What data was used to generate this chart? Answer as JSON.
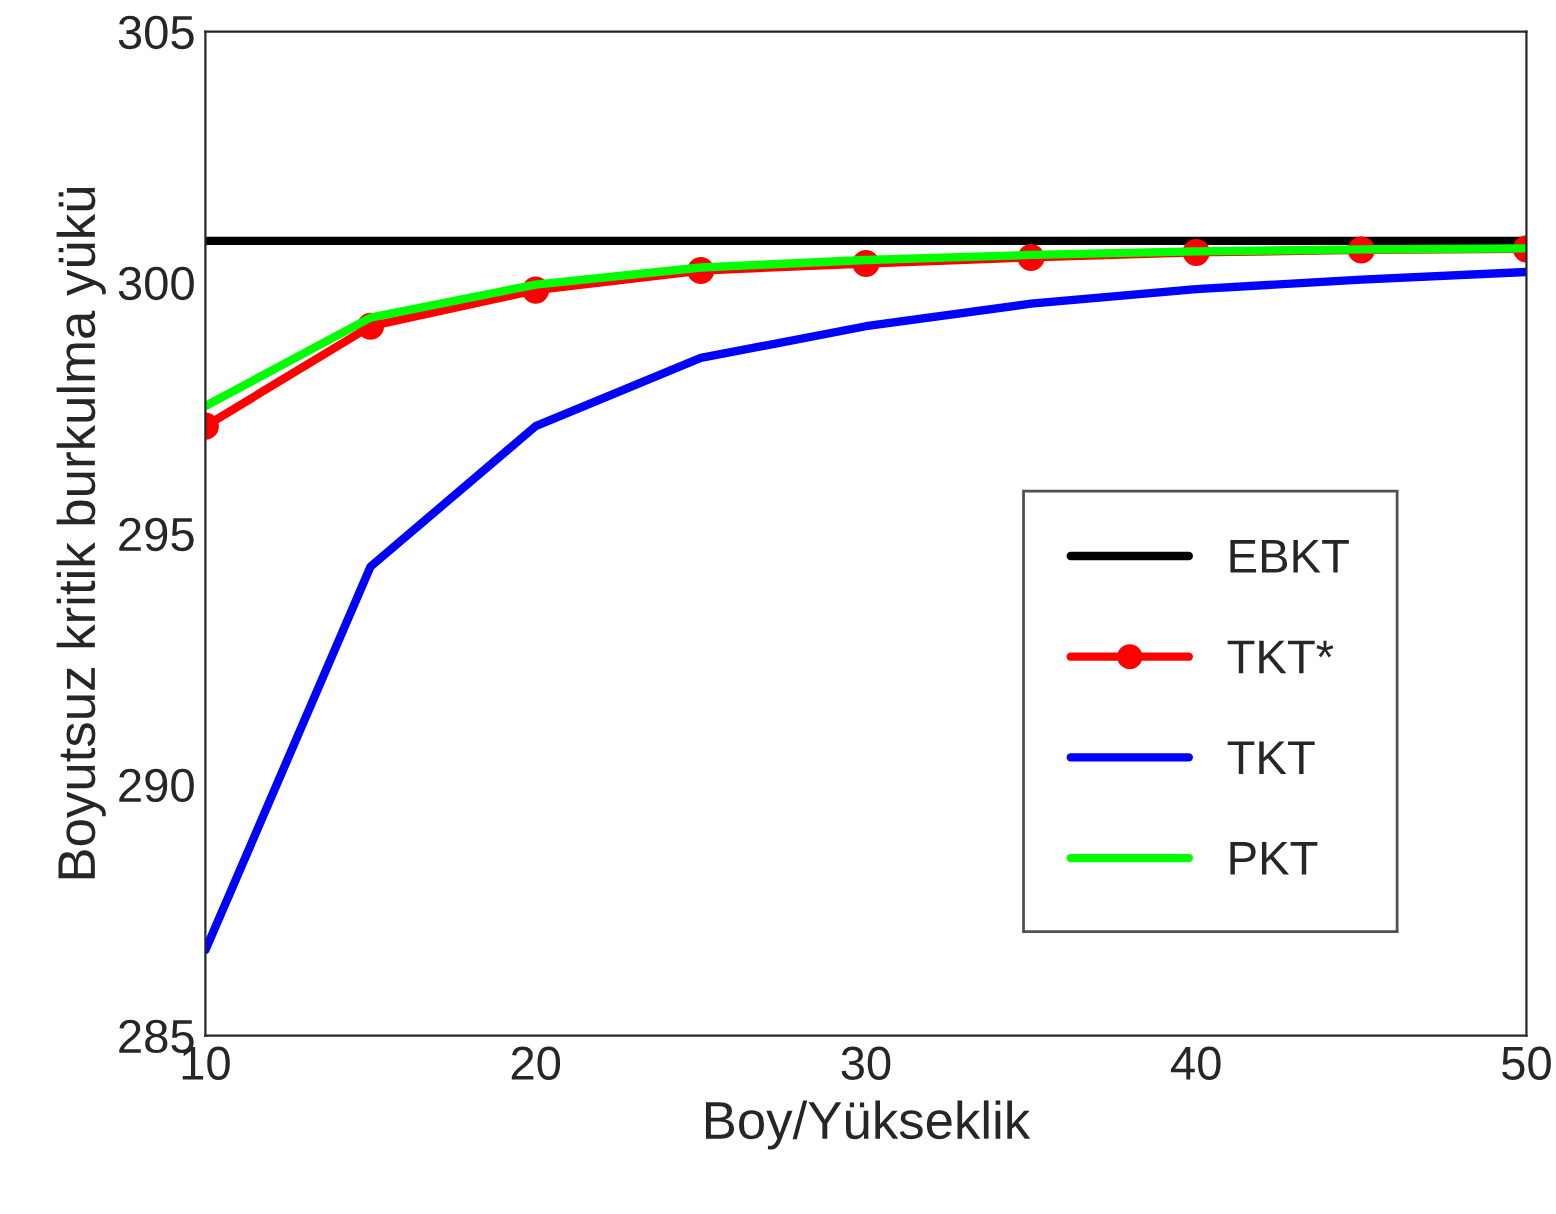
{
  "chart_data": {
    "type": "line",
    "xlabel": "Boy/Yükseklik",
    "ylabel": "Boyutsuz kritik burkulma yükü",
    "x": [
      10,
      15,
      20,
      25,
      30,
      35,
      40,
      45,
      50
    ],
    "xlim": [
      10,
      50
    ],
    "xticks": [
      10,
      20,
      30,
      40,
      50
    ],
    "ylim": [
      285,
      305
    ],
    "yticks": [
      285,
      290,
      295,
      300,
      305
    ],
    "grid": false,
    "legend": "bottom right",
    "series": [
      {
        "name": "EBKT",
        "color": "#000000",
        "x": [
          10,
          50
        ],
        "values": [
          300.83,
          300.83
        ],
        "marker": "none"
      },
      {
        "name": "TKT*",
        "color": "#ff0000",
        "values": [
          297.14,
          299.13,
          299.85,
          300.24,
          300.38,
          300.5,
          300.6,
          300.65,
          300.67
        ],
        "marker": "circle"
      },
      {
        "name": "TKT",
        "color": "#0000ff",
        "values": [
          286.7,
          294.34,
          297.14,
          298.5,
          299.13,
          299.58,
          299.87,
          300.06,
          300.21
        ],
        "marker": "none"
      },
      {
        "name": "PKT",
        "color": "#00ff00",
        "values": [
          297.54,
          299.3,
          299.96,
          300.3,
          300.45,
          300.55,
          300.62,
          300.66,
          300.68
        ],
        "marker": "none"
      }
    ]
  }
}
